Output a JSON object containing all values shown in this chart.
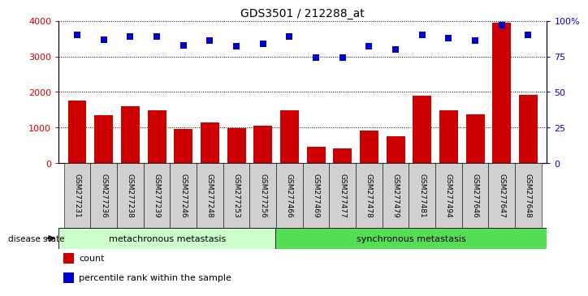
{
  "title": "GDS3501 / 212288_at",
  "samples": [
    "GSM277231",
    "GSM277236",
    "GSM277238",
    "GSM277239",
    "GSM277246",
    "GSM277248",
    "GSM277253",
    "GSM277256",
    "GSM277466",
    "GSM277469",
    "GSM277477",
    "GSM277478",
    "GSM277479",
    "GSM277481",
    "GSM277494",
    "GSM277646",
    "GSM277647",
    "GSM277648"
  ],
  "counts": [
    1750,
    1350,
    1600,
    1490,
    960,
    1150,
    980,
    1050,
    1490,
    460,
    410,
    920,
    760,
    1900,
    1490,
    1380,
    3950,
    1920
  ],
  "percentiles": [
    90,
    87,
    89,
    89,
    83,
    86,
    82,
    84,
    89,
    74,
    74,
    82,
    80,
    90,
    88,
    86,
    97,
    90
  ],
  "group1_label": "metachronous metastasis",
  "group1_count": 8,
  "group2_label": "synchronous metastasis",
  "group2_count": 10,
  "bar_color": "#cc0000",
  "scatter_color": "#0000cc",
  "group1_bg": "#ccffcc",
  "group2_bg": "#55dd55",
  "ticklabel_bg": "#d0d0d0",
  "ylim_left": [
    0,
    4000
  ],
  "ylim_right": [
    0,
    100
  ],
  "yticks_left": [
    0,
    1000,
    2000,
    3000,
    4000
  ],
  "ytick_labels_left": [
    "0",
    "1000",
    "2000",
    "3000",
    "4000"
  ],
  "yticks_right": [
    0,
    25,
    50,
    75,
    100
  ],
  "ytick_labels_right": [
    "0",
    "25",
    "50",
    "75",
    "100%"
  ],
  "legend_count_label": "count",
  "legend_pct_label": "percentile rank within the sample",
  "disease_state_label": "disease state"
}
